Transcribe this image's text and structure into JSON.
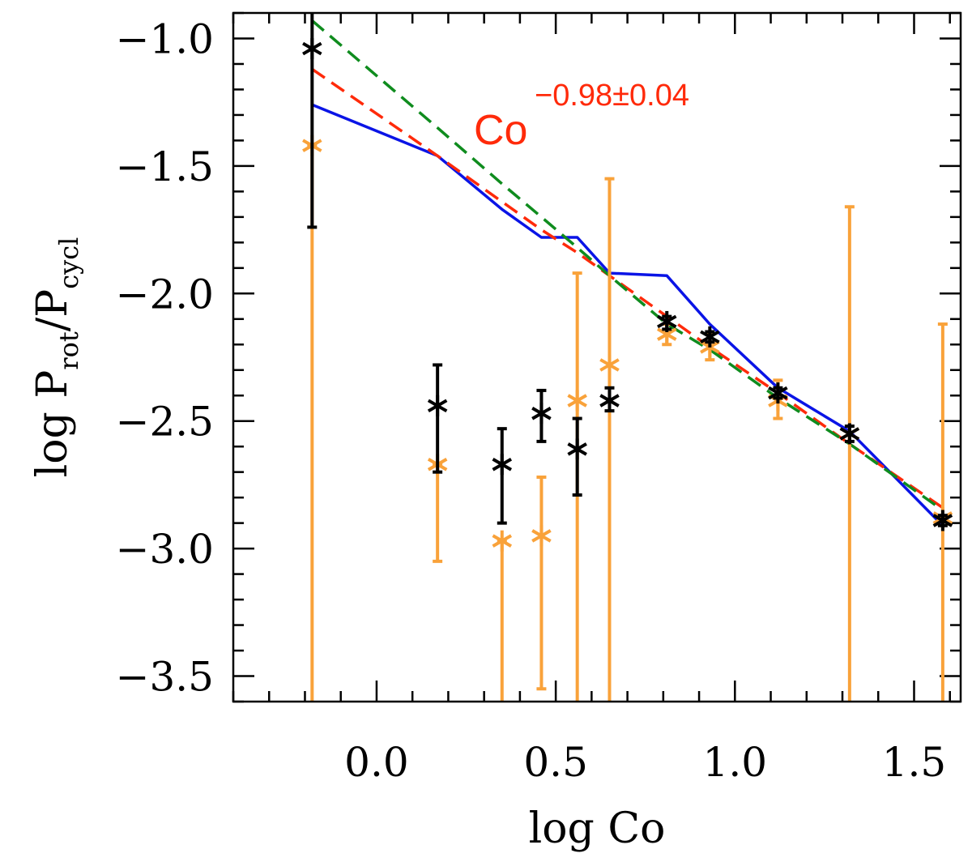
{
  "chart_data": {
    "type": "scatter",
    "title": "",
    "xlabel": "log Co",
    "ylabel": {
      "main": "log P",
      "sub1": "rot",
      "sep": "/P",
      "sub2": "cycl"
    },
    "xlim": [
      -0.4,
      1.63
    ],
    "ylim": [
      -3.6,
      -0.9
    ],
    "x_ticks": [
      0.0,
      0.5,
      1.0,
      1.5
    ],
    "x_tick_labels": [
      "0.0",
      "0.5",
      "1.0",
      "1.5"
    ],
    "y_ticks": [
      -1.0,
      -1.5,
      -2.0,
      -2.5,
      -3.0,
      -3.5
    ],
    "y_tick_labels": [
      "−1.0",
      "−1.5",
      "−2.0",
      "−2.5",
      "−3.0",
      "−3.5"
    ],
    "x_minor_step": 0.1,
    "y_minor_step": 0.1,
    "grid": false,
    "annotation": {
      "base": "Co",
      "exponent": "−0.98±0.04",
      "color": "#ff2a0a"
    },
    "series": [
      {
        "kind": "errorbar",
        "color": "#000000",
        "points": [
          {
            "x": -0.18,
            "y": -1.04,
            "lo": -1.74,
            "hi": -0.9
          },
          {
            "x": 0.17,
            "y": -2.44,
            "lo": -2.7,
            "hi": -2.28
          },
          {
            "x": 0.35,
            "y": -2.67,
            "lo": -2.9,
            "hi": -2.53
          },
          {
            "x": 0.46,
            "y": -2.47,
            "lo": -2.58,
            "hi": -2.38
          },
          {
            "x": 0.56,
            "y": -2.61,
            "lo": -2.79,
            "hi": -2.49
          },
          {
            "x": 0.65,
            "y": -2.42,
            "lo": -2.46,
            "hi": -2.37
          },
          {
            "x": 0.81,
            "y": -2.11,
            "lo": -2.14,
            "hi": -2.09
          },
          {
            "x": 0.93,
            "y": -2.17,
            "lo": -2.19,
            "hi": -2.15
          },
          {
            "x": 1.12,
            "y": -2.39,
            "lo": -2.41,
            "hi": -2.37
          },
          {
            "x": 1.32,
            "y": -2.55,
            "lo": -2.58,
            "hi": -2.52
          },
          {
            "x": 1.58,
            "y": -2.89,
            "lo": -2.91,
            "hi": -2.87
          }
        ]
      },
      {
        "kind": "errorbar",
        "color": "#f9a23a",
        "points": [
          {
            "x": -0.18,
            "y": -1.42,
            "lo": -3.6,
            "hi": -1.42
          },
          {
            "x": 0.17,
            "y": -2.67,
            "lo": -3.05,
            "hi": -2.67
          },
          {
            "x": 0.35,
            "y": -2.97,
            "lo": -3.6,
            "hi": -2.97
          },
          {
            "x": 0.46,
            "y": -2.95,
            "lo": -3.55,
            "hi": -2.72
          },
          {
            "x": 0.56,
            "y": -2.42,
            "lo": -3.6,
            "hi": -1.92
          },
          {
            "x": 0.65,
            "y": -2.28,
            "lo": -3.6,
            "hi": -1.55
          },
          {
            "x": 0.81,
            "y": -2.16,
            "lo": -2.2,
            "hi": -2.12
          },
          {
            "x": 0.93,
            "y": -2.21,
            "lo": -2.26,
            "hi": -2.16
          },
          {
            "x": 1.12,
            "y": -2.42,
            "lo": -2.49,
            "hi": -2.34
          },
          {
            "x": 1.32,
            "y": -2.55,
            "lo": -3.6,
            "hi": -1.66
          },
          {
            "x": 1.58,
            "y": -2.88,
            "lo": -3.6,
            "hi": -2.12
          }
        ]
      },
      {
        "kind": "line",
        "style": "solid",
        "color": "#0a14e6",
        "x": [
          -0.18,
          0.17,
          0.35,
          0.46,
          0.56,
          0.65,
          0.81,
          0.93,
          1.12,
          1.32,
          1.58
        ],
        "y": [
          -1.26,
          -1.46,
          -1.67,
          -1.78,
          -1.78,
          -1.92,
          -1.93,
          -2.12,
          -2.37,
          -2.54,
          -2.91
        ]
      },
      {
        "kind": "line",
        "style": "dashed",
        "color": "#ff2a0a",
        "x": [
          -0.18,
          0.17,
          0.35,
          0.46,
          0.56,
          0.65,
          0.81,
          0.93,
          1.12,
          1.32,
          1.58
        ],
        "y": [
          -1.12,
          -1.46,
          -1.64,
          -1.75,
          -1.84,
          -1.93,
          -2.09,
          -2.21,
          -2.39,
          -2.59,
          -2.84
        ]
      },
      {
        "kind": "line",
        "style": "dashed",
        "color": "#0f8c1e",
        "x": [
          -0.18,
          0.17,
          0.35,
          0.46,
          0.56,
          0.65,
          0.81,
          0.93,
          1.12,
          1.32,
          1.58
        ],
        "y": [
          -0.93,
          -1.35,
          -1.57,
          -1.7,
          -1.82,
          -1.93,
          -2.12,
          -2.22,
          -2.41,
          -2.59,
          -2.85
        ]
      }
    ]
  }
}
